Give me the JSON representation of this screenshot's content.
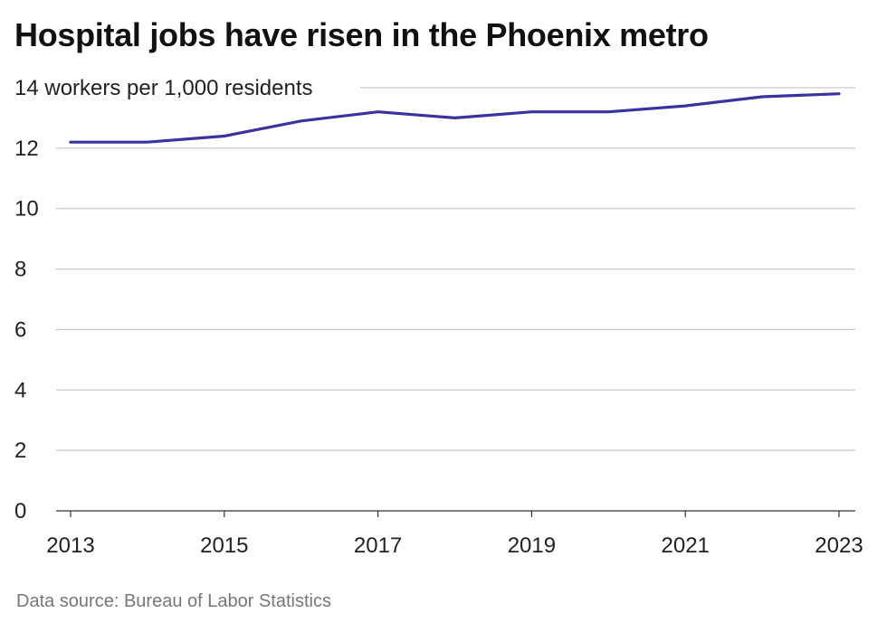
{
  "title": "Hospital jobs have risen in the Phoenix metro",
  "source": "Data source: Bureau of Labor Statistics",
  "colors": {
    "line": "#3a32a0",
    "grid": "#bdbdbd",
    "text": "#222222",
    "source": "#777777"
  },
  "chart_data": {
    "type": "line",
    "title": "Hospital jobs have risen in the Phoenix metro",
    "top_tick_label": "14 workers per 1,000 residents",
    "x": [
      2013,
      2014,
      2015,
      2016,
      2017,
      2018,
      2019,
      2020,
      2021,
      2022,
      2023
    ],
    "series": [
      {
        "values": [
          12.2,
          12.2,
          12.4,
          12.9,
          13.2,
          13.0,
          13.2,
          13.2,
          13.4,
          13.7,
          13.8
        ]
      }
    ],
    "x_ticks": [
      2013,
      2015,
      2017,
      2019,
      2021,
      2023
    ],
    "y_ticks": [
      0,
      2,
      4,
      6,
      8,
      10,
      12,
      14
    ],
    "xlim": [
      2013,
      2023
    ],
    "ylim": [
      0,
      14
    ],
    "grid": "horizontal"
  }
}
